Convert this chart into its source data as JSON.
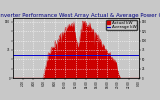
{
  "title": "Solar PV/Inverter Performance West Array Actual & Average Power Output",
  "title_fontsize": 4.0,
  "title_color": "#000080",
  "bg_color": "#c8c8c8",
  "plot_bg_color": "#c8c8c8",
  "grid_color": "#ffffff",
  "red_color": "#cc0000",
  "blue_color": "#0000cc",
  "legend_actual": "Actual kW",
  "legend_avg": "Average kW",
  "legend_fontsize": 3.0,
  "num_points": 288,
  "ylim_max": 160,
  "avg_line_y": 62,
  "x_labels": [
    "2:00",
    "4:00",
    "6:00",
    "8:00",
    "10:00",
    "12:00",
    "14:00",
    "16:00",
    "18:00",
    "20:00",
    "22:00",
    "0:00"
  ],
  "x_tick_fracs": [
    0.0833,
    0.1667,
    0.25,
    0.3333,
    0.4167,
    0.5,
    0.5833,
    0.6667,
    0.75,
    0.8333,
    0.9167,
    1.0
  ],
  "yticks": [
    0,
    25,
    50,
    75,
    100,
    125,
    150
  ],
  "left_ytick_labels": [
    "0",
    "",
    "",
    "75",
    "",
    "",
    "150"
  ]
}
